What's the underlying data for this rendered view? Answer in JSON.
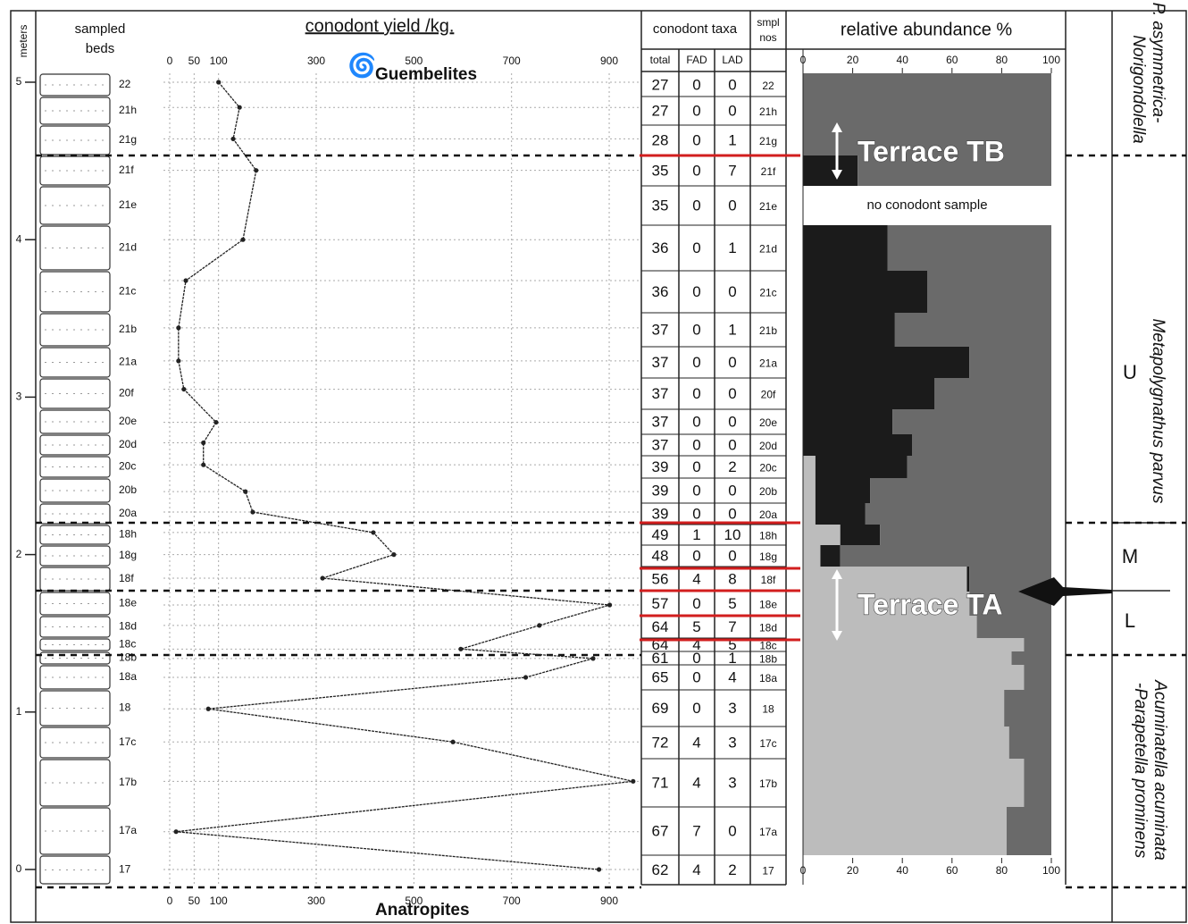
{
  "headers": {
    "meters": "meters",
    "sampled": "sampled",
    "beds": "beds",
    "taxa": "conodont taxa",
    "smpl": "smpl",
    "nos": "nos",
    "total": "total",
    "fad": "FAD",
    "lad": "LAD"
  },
  "beds": [
    "22",
    "21h",
    "21g",
    "21f",
    "21e",
    "21d",
    "21c",
    "21b",
    "21a",
    "20f",
    "20e",
    "20d",
    "20c",
    "20b",
    "20a",
    "18h",
    "18g",
    "18f",
    "18e",
    "18d",
    "18c",
    "18b",
    "18a",
    "18",
    "17c",
    "17b",
    "17a",
    "17"
  ],
  "table": {
    "rows": [
      [
        27,
        0,
        0
      ],
      [
        27,
        0,
        0
      ],
      [
        28,
        0,
        1
      ],
      [
        35,
        0,
        7
      ],
      [
        35,
        0,
        0
      ],
      [
        36,
        0,
        1
      ],
      [
        36,
        0,
        0
      ],
      [
        37,
        0,
        1
      ],
      [
        37,
        0,
        0
      ],
      [
        37,
        0,
        0
      ],
      [
        37,
        0,
        0
      ],
      [
        37,
        0,
        0
      ],
      [
        39,
        0,
        2
      ],
      [
        39,
        0,
        0
      ],
      [
        39,
        0,
        0
      ],
      [
        49,
        1,
        10
      ],
      [
        48,
        0,
        0
      ],
      [
        56,
        4,
        8
      ],
      [
        57,
        0,
        5
      ],
      [
        64,
        5,
        7
      ],
      [
        64,
        4,
        5
      ],
      [
        61,
        0,
        1
      ],
      [
        65,
        0,
        4
      ],
      [
        69,
        0,
        3
      ],
      [
        72,
        4,
        3
      ],
      [
        71,
        4,
        3
      ],
      [
        67,
        7,
        0
      ],
      [
        62,
        4,
        2
      ]
    ]
  },
  "chart_data": [
    {
      "type": "line",
      "title": "conodont yield /kg.",
      "x_label": "meters",
      "color": "#222",
      "x": [
        5.0,
        4.84,
        4.64,
        4.44,
        4.0,
        3.74,
        3.44,
        3.23,
        3.05,
        2.84,
        2.71,
        2.57,
        2.4,
        2.27,
        2.14,
        2.0,
        1.85,
        1.68,
        1.55,
        1.4,
        1.34,
        1.22,
        1.02,
        0.81,
        0.56,
        0.24,
        0.0
      ],
      "values": [
        100,
        143,
        130,
        177,
        150,
        33,
        18,
        18,
        29,
        95,
        69,
        69,
        155,
        170,
        417,
        459,
        313,
        901,
        757,
        596,
        867,
        729,
        79,
        580,
        949,
        13,
        879
      ],
      "xlim": [
        0,
        5
      ],
      "xticks": [
        0,
        1,
        2,
        3,
        4,
        5
      ],
      "ylim": [
        0,
        960
      ],
      "yticks": [
        0,
        50,
        100,
        300,
        500,
        700,
        900
      ],
      "grid": true
    },
    {
      "type": "bar",
      "orientation": "horizontal",
      "title": "relative abundance %",
      "xlim": [
        0,
        100
      ],
      "xticks": [
        0,
        20,
        40,
        60,
        80,
        100
      ],
      "series": [
        {
          "color": "#bcbcbc",
          "values": [
            0,
            0,
            0,
            0,
            null,
            0,
            0,
            0,
            0,
            0,
            0,
            0,
            5,
            5,
            5,
            15,
            7,
            66,
            67,
            70,
            89,
            84,
            89,
            81,
            83,
            89,
            82,
            null
          ]
        },
        {
          "color": "#1b1b1b",
          "values": [
            0,
            0,
            0,
            22,
            null,
            34,
            50,
            37,
            67,
            53,
            36,
            44,
            37,
            22,
            20,
            16,
            8,
            1,
            0,
            0,
            0,
            0,
            0,
            0,
            0,
            0,
            0,
            null
          ]
        },
        {
          "color": "#6a6a6a",
          "values": [
            100,
            100,
            100,
            78,
            null,
            66,
            50,
            63,
            33,
            47,
            64,
            56,
            58,
            73,
            75,
            69,
            85,
            33,
            33,
            30,
            11,
            16,
            11,
            19,
            17,
            11,
            18,
            null
          ]
        }
      ]
    }
  ],
  "annotations": {
    "guembelites": "Guembelites",
    "anatropites": "Anatropites",
    "terrace_tb": "Terrace TB",
    "terrace_ta": "Terrace TA",
    "no_sample": "no conodont sample"
  },
  "zones": {
    "top_1": "P. asymmetrica-",
    "top_2": "Norigondolella",
    "mid": "Metapolygnathus      parvus",
    "u": "U",
    "m": "M",
    "l": "L",
    "bottom_1": "Acuminatella acuminata",
    "bottom_2": "-Parapetella prominens"
  }
}
